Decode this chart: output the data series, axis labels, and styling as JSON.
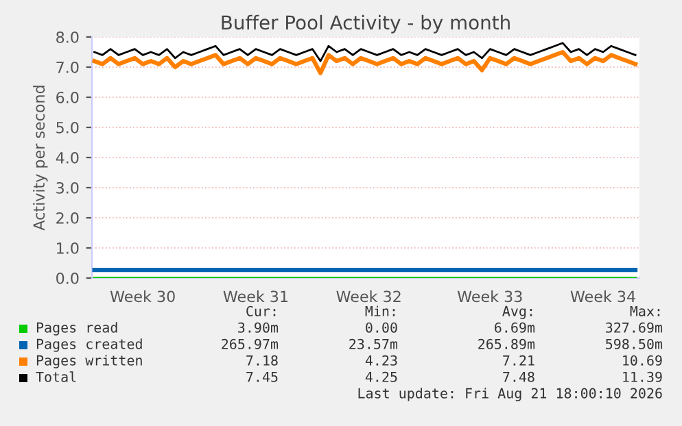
{
  "chart_data": {
    "type": "line",
    "title": "Buffer Pool Activity - by month",
    "ylabel": "Activity per second",
    "categories": [
      null,
      null,
      null,
      null,
      null,
      null,
      "Week 30",
      null,
      null,
      null,
      null,
      null,
      null,
      null,
      null,
      null,
      null,
      null,
      null,
      null,
      "Week 31",
      null,
      null,
      null,
      null,
      null,
      null,
      null,
      null,
      null,
      null,
      null,
      null,
      null,
      "Week 32",
      null,
      null,
      null,
      null,
      null,
      null,
      null,
      null,
      null,
      null,
      null,
      null,
      null,
      null,
      "Week 33",
      null,
      null,
      null,
      null,
      null,
      null,
      null,
      null,
      null,
      null,
      null,
      null,
      null,
      "Week 34",
      null,
      null,
      null,
      null
    ],
    "series": [
      {
        "name": "Pages read",
        "color": "#00cc00",
        "values": [
          0.0,
          0.0,
          0.0,
          0.0,
          0.0,
          0.0,
          0.0,
          0.0,
          0.0,
          0.0,
          0.0,
          0.0,
          0.0,
          0.0,
          0.0,
          0.0,
          0.0,
          0.0,
          0.0,
          0.0,
          0.0,
          0.0,
          0.0,
          0.0,
          0.0,
          0.0,
          0.0,
          0.0,
          0.0,
          0.0,
          0.0,
          0.0,
          0.0,
          0.0,
          0.0,
          0.0,
          0.0,
          0.0,
          0.0,
          0.0,
          0.0,
          0.0,
          0.0,
          0.0,
          0.0,
          0.0,
          0.0,
          0.0,
          0.0,
          0.0,
          0.0,
          0.0,
          0.0,
          0.0,
          0.0,
          0.0,
          0.0,
          0.0,
          0.0,
          0.0,
          0.0,
          0.0,
          0.0,
          0.0,
          0.0,
          0.0,
          0.0,
          0.0
        ]
      },
      {
        "name": "Pages created",
        "color": "#0066b3",
        "values": [
          0.27,
          0.27,
          0.27,
          0.27,
          0.27,
          0.27,
          0.27,
          0.27,
          0.27,
          0.27,
          0.27,
          0.27,
          0.27,
          0.27,
          0.27,
          0.27,
          0.27,
          0.27,
          0.27,
          0.27,
          0.27,
          0.27,
          0.27,
          0.27,
          0.27,
          0.27,
          0.27,
          0.27,
          0.27,
          0.27,
          0.27,
          0.27,
          0.27,
          0.27,
          0.27,
          0.27,
          0.27,
          0.27,
          0.27,
          0.27,
          0.27,
          0.27,
          0.27,
          0.27,
          0.27,
          0.27,
          0.27,
          0.27,
          0.27,
          0.27,
          0.27,
          0.27,
          0.27,
          0.27,
          0.27,
          0.27,
          0.27,
          0.27,
          0.27,
          0.27,
          0.27,
          0.27,
          0.27,
          0.27,
          0.27,
          0.27,
          0.27,
          0.27
        ]
      },
      {
        "name": "Pages written",
        "color": "#ff8000",
        "values": [
          7.2,
          7.1,
          7.3,
          7.1,
          7.2,
          7.3,
          7.1,
          7.2,
          7.1,
          7.3,
          7.0,
          7.2,
          7.1,
          7.2,
          7.3,
          7.4,
          7.1,
          7.2,
          7.3,
          7.1,
          7.3,
          7.2,
          7.1,
          7.3,
          7.2,
          7.1,
          7.2,
          7.3,
          6.8,
          7.4,
          7.2,
          7.3,
          7.1,
          7.3,
          7.2,
          7.1,
          7.2,
          7.3,
          7.1,
          7.2,
          7.1,
          7.3,
          7.2,
          7.1,
          7.2,
          7.3,
          7.1,
          7.2,
          6.9,
          7.3,
          7.2,
          7.1,
          7.3,
          7.2,
          7.1,
          7.2,
          7.3,
          7.4,
          7.5,
          7.2,
          7.3,
          7.1,
          7.3,
          7.2,
          7.4,
          7.3,
          7.2,
          7.1
        ]
      },
      {
        "name": "Total",
        "color": "#000000",
        "values": [
          7.5,
          7.4,
          7.6,
          7.4,
          7.5,
          7.6,
          7.4,
          7.5,
          7.4,
          7.6,
          7.3,
          7.5,
          7.4,
          7.5,
          7.6,
          7.7,
          7.4,
          7.5,
          7.6,
          7.4,
          7.6,
          7.5,
          7.4,
          7.6,
          7.5,
          7.4,
          7.5,
          7.6,
          7.2,
          7.7,
          7.5,
          7.6,
          7.4,
          7.6,
          7.5,
          7.4,
          7.5,
          7.6,
          7.4,
          7.5,
          7.4,
          7.6,
          7.5,
          7.4,
          7.5,
          7.6,
          7.4,
          7.5,
          7.3,
          7.6,
          7.5,
          7.4,
          7.6,
          7.5,
          7.4,
          7.5,
          7.6,
          7.7,
          7.8,
          7.5,
          7.6,
          7.4,
          7.6,
          7.5,
          7.7,
          7.6,
          7.5,
          7.4
        ]
      }
    ],
    "ylim": [
      0,
      8
    ],
    "yticks": [
      {
        "value": 0,
        "label": "0.0"
      },
      {
        "value": 1,
        "label": "1.0"
      },
      {
        "value": 2,
        "label": "2.0"
      },
      {
        "value": 3,
        "label": "3.0"
      },
      {
        "value": 4,
        "label": "4.0"
      },
      {
        "value": 5,
        "label": "5.0"
      },
      {
        "value": 6,
        "label": "6.0"
      },
      {
        "value": 7,
        "label": "7.0"
      },
      {
        "value": 8,
        "label": "8.0"
      }
    ],
    "grid": "y",
    "legend": "bottom",
    "marker": "none",
    "line_style": "solid",
    "annotations": [
      "Cur:",
      "Min:",
      "Avg:",
      "Max:",
      "3.90m",
      "0.00",
      "6.69m",
      "327.69m",
      "265.97m",
      "23.57m",
      "265.89m",
      "598.50m",
      "7.18",
      "4.23",
      "7.21",
      "10.69",
      "7.45",
      "4.25",
      "7.48",
      "11.39",
      "Last update: Fri Aug 21 18:00:10 2026"
    ]
  }
}
